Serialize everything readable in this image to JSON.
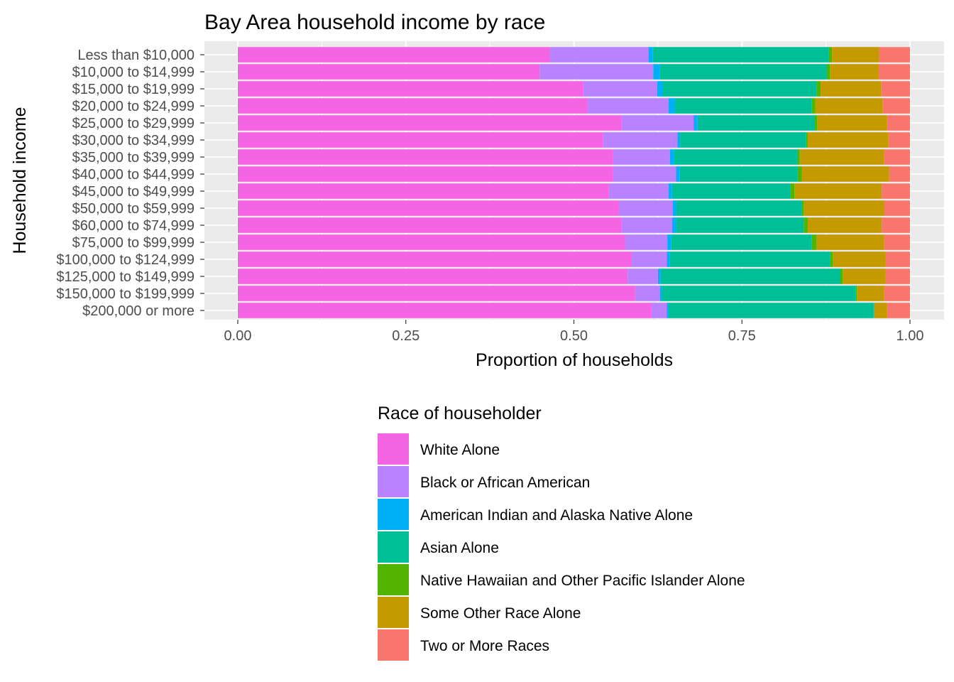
{
  "chart_data": {
    "type": "bar",
    "orientation": "horizontal",
    "stacked": "proportion",
    "title": "Bay Area household income by race",
    "xlabel": "Proportion of households",
    "ylabel": "Household income",
    "xlim": [
      0,
      1
    ],
    "x_ticks": [
      "0.00",
      "0.25",
      "0.50",
      "0.75",
      "1.00"
    ],
    "grid": true,
    "legend_title": "Race of householder",
    "legend_position": "bottom",
    "categories": [
      "Less than $10,000",
      "$10,000 to $14,999",
      "$15,000 to $19,999",
      "$20,000 to $24,999",
      "$25,000 to $29,999",
      "$30,000 to $34,999",
      "$35,000 to $39,999",
      "$40,000 to $44,999",
      "$45,000 to $49,999",
      "$50,000 to $59,999",
      "$60,000 to $74,999",
      "$75,000 to $99,999",
      "$100,000 to $124,999",
      "$125,000 to $149,999",
      "$150,000 to $199,999",
      "$200,000 or more"
    ],
    "series": [
      {
        "name": "White Alone",
        "color": "#F564E3",
        "values": [
          0.464,
          0.449,
          0.514,
          0.52,
          0.571,
          0.543,
          0.558,
          0.558,
          0.552,
          0.566,
          0.571,
          0.576,
          0.585,
          0.58,
          0.591,
          0.615
        ]
      },
      {
        "name": "Black or African American",
        "color": "#B983FF",
        "values": [
          0.147,
          0.169,
          0.11,
          0.121,
          0.107,
          0.111,
          0.085,
          0.094,
          0.089,
          0.081,
          0.075,
          0.063,
          0.053,
          0.045,
          0.037,
          0.023
        ]
      },
      {
        "name": "American Indian and Alaska Native Alone",
        "color": "#00B0F6",
        "values": [
          0.006,
          0.01,
          0.008,
          0.009,
          0.006,
          0.004,
          0.006,
          0.005,
          0.005,
          0.005,
          0.006,
          0.006,
          0.005,
          0.004,
          0.003,
          0.002
        ]
      },
      {
        "name": "Asian Alone",
        "color": "#00BF96",
        "values": [
          0.262,
          0.248,
          0.229,
          0.204,
          0.174,
          0.187,
          0.183,
          0.176,
          0.176,
          0.187,
          0.19,
          0.209,
          0.238,
          0.267,
          0.288,
          0.306
        ]
      },
      {
        "name": "Native Hawaiian and Other Pacific Islander Alone",
        "color": "#53B400",
        "values": [
          0.005,
          0.005,
          0.006,
          0.005,
          0.004,
          0.003,
          0.004,
          0.006,
          0.006,
          0.003,
          0.006,
          0.007,
          0.004,
          0.004,
          0.002,
          0.0
        ]
      },
      {
        "name": "Some Other Race Alone",
        "color": "#C49A00",
        "values": [
          0.07,
          0.072,
          0.09,
          0.1,
          0.104,
          0.12,
          0.125,
          0.13,
          0.13,
          0.12,
          0.11,
          0.1,
          0.079,
          0.063,
          0.04,
          0.02
        ]
      },
      {
        "name": "Two or More Races",
        "color": "#F8766D",
        "values": [
          0.046,
          0.047,
          0.043,
          0.041,
          0.034,
          0.032,
          0.039,
          0.031,
          0.042,
          0.038,
          0.042,
          0.039,
          0.036,
          0.037,
          0.039,
          0.034
        ]
      }
    ]
  }
}
